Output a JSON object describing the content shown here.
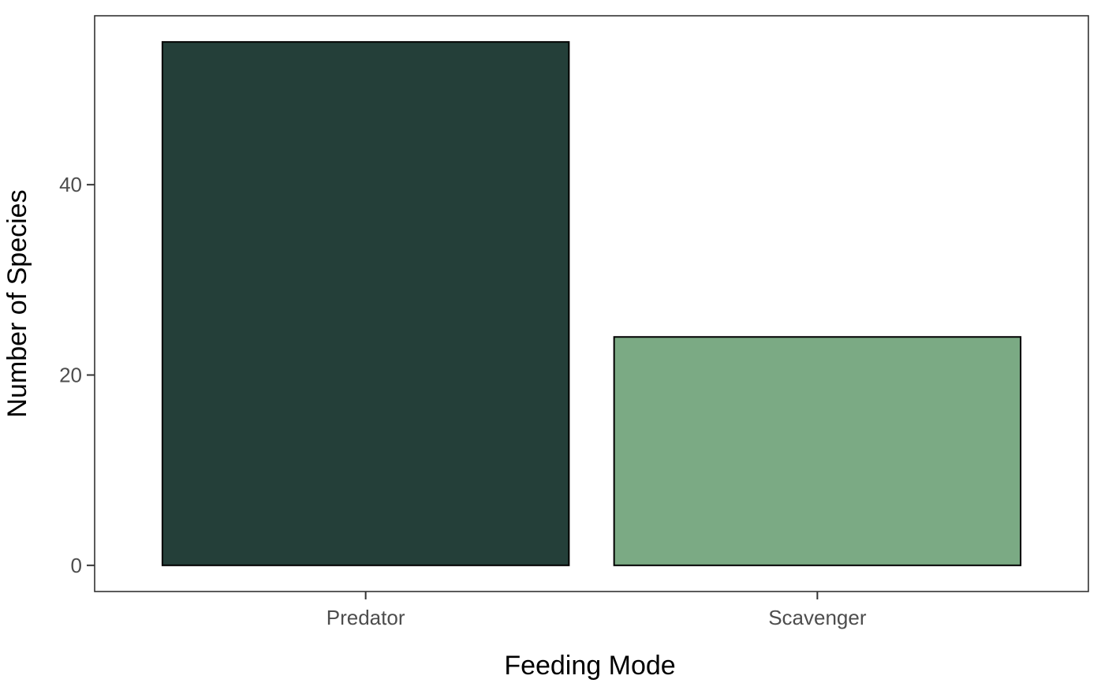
{
  "chart_data": {
    "type": "bar",
    "title": "",
    "xlabel": "Feeding Mode",
    "ylabel": "Number of Species",
    "categories": [
      "Predator",
      "Scavenger"
    ],
    "values": [
      55,
      24
    ],
    "colors": [
      "#243f39",
      "#7baa84"
    ],
    "bar_outline_color": "#000000",
    "ylim": [
      -2.75,
      57.75
    ],
    "yticks": [
      0,
      20,
      40
    ],
    "grid": false,
    "panel_border": true,
    "legend": "none"
  }
}
